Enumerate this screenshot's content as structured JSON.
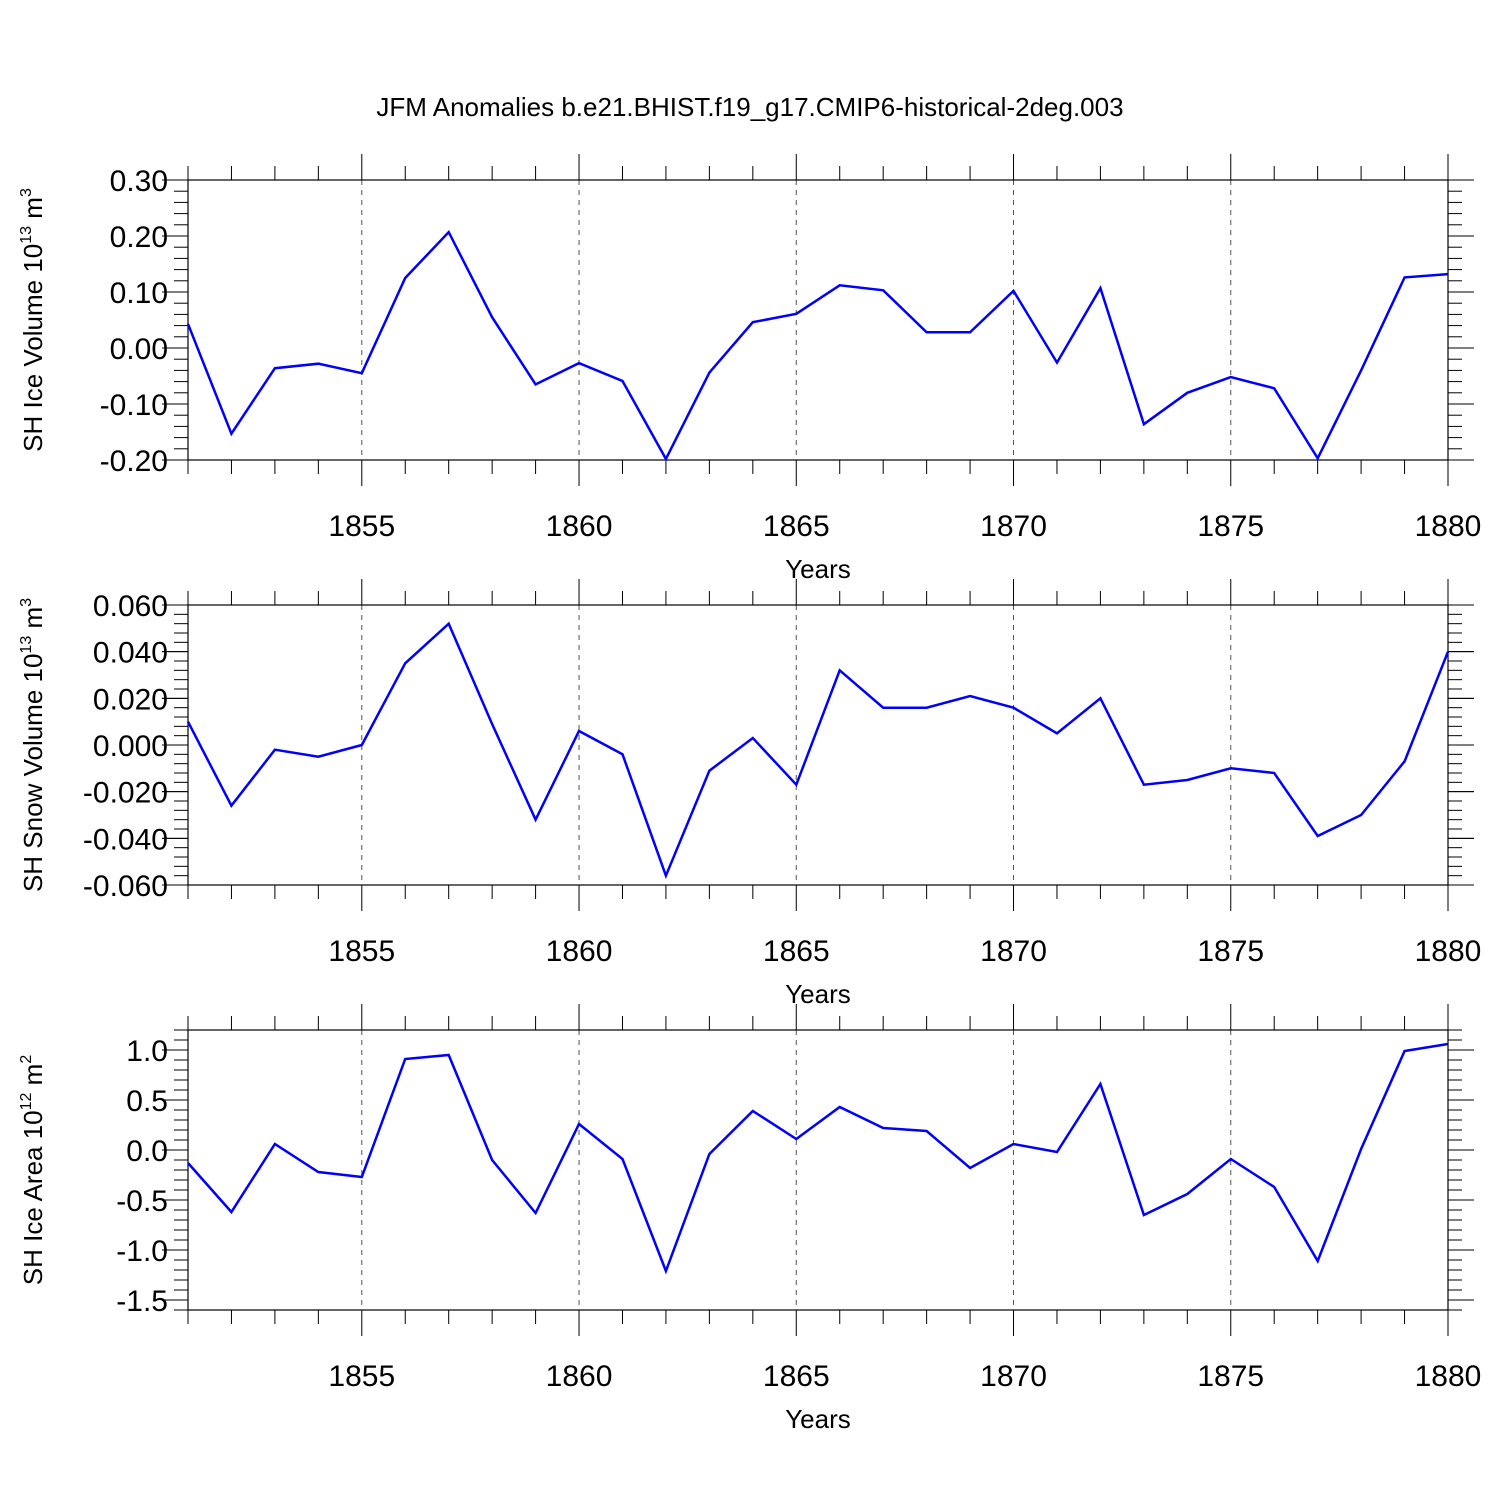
{
  "title": "JFM Anomalies b.e21.BHIST.f19_g17.CMIP6-historical-2deg.003",
  "chart_data": [
    {
      "type": "line",
      "ylabel_text": "SH Ice Volume 10",
      "ylabel_exp": "13",
      "ylabel_unit": " m",
      "ylabel_unit_exp": "3",
      "xlabel": "Years",
      "xlim": [
        1851,
        1880
      ],
      "ylim": [
        -0.2,
        0.3
      ],
      "x_ticks": [
        1855,
        1860,
        1865,
        1870,
        1875,
        1880
      ],
      "x_tick_labels": [
        "1855",
        "1860",
        "1865",
        "1870",
        "1875",
        "1880"
      ],
      "y_ticks": [
        -0.2,
        -0.1,
        0.0,
        0.1,
        0.2,
        0.3
      ],
      "y_tick_labels": [
        "-0.20",
        "-0.10",
        "0.00",
        "0.10",
        "0.20",
        "0.30"
      ],
      "grid": "vertical dashed at major x ticks",
      "line_color": "#0000ff",
      "x": [
        1851,
        1852,
        1853,
        1854,
        1855,
        1856,
        1857,
        1858,
        1859,
        1860,
        1861,
        1862,
        1863,
        1864,
        1865,
        1866,
        1867,
        1868,
        1869,
        1870,
        1871,
        1872,
        1873,
        1874,
        1875,
        1876,
        1877,
        1878,
        1879,
        1880
      ],
      "values": [
        0.043,
        -0.153,
        -0.036,
        -0.028,
        -0.045,
        0.125,
        0.207,
        0.055,
        -0.065,
        -0.027,
        -0.059,
        -0.198,
        -0.044,
        0.046,
        0.061,
        0.112,
        0.103,
        0.028,
        0.028,
        0.102,
        -0.026,
        0.107,
        -0.136,
        -0.08,
        -0.052,
        -0.072,
        -0.197,
        -0.04,
        0.126,
        0.132
      ]
    },
    {
      "type": "line",
      "ylabel_text": "SH Snow Volume 10",
      "ylabel_exp": "13",
      "ylabel_unit": " m",
      "ylabel_unit_exp": "3",
      "xlabel": "Years",
      "xlim": [
        1851,
        1880
      ],
      "ylim": [
        -0.06,
        0.06
      ],
      "x_ticks": [
        1855,
        1860,
        1865,
        1870,
        1875,
        1880
      ],
      "x_tick_labels": [
        "1855",
        "1860",
        "1865",
        "1870",
        "1875",
        "1880"
      ],
      "y_ticks": [
        -0.06,
        -0.04,
        -0.02,
        0.0,
        0.02,
        0.04,
        0.06
      ],
      "y_tick_labels": [
        "-0.060",
        "-0.040",
        "-0.020",
        "0.000",
        "0.020",
        "0.040",
        "0.060"
      ],
      "grid": "vertical dashed at major x ticks",
      "line_color": "#0000ff",
      "x": [
        1851,
        1852,
        1853,
        1854,
        1855,
        1856,
        1857,
        1858,
        1859,
        1860,
        1861,
        1862,
        1863,
        1864,
        1865,
        1866,
        1867,
        1868,
        1869,
        1870,
        1871,
        1872,
        1873,
        1874,
        1875,
        1876,
        1877,
        1878,
        1879,
        1880
      ],
      "values": [
        0.01,
        -0.026,
        -0.002,
        -0.005,
        0.0,
        0.035,
        0.052,
        0.009,
        -0.032,
        0.006,
        -0.004,
        -0.056,
        -0.011,
        0.003,
        -0.017,
        0.032,
        0.016,
        0.016,
        0.021,
        0.016,
        0.005,
        0.02,
        -0.017,
        -0.015,
        -0.01,
        -0.012,
        -0.039,
        -0.03,
        -0.007,
        0.04
      ]
    },
    {
      "type": "line",
      "ylabel_text": "SH Ice Area 10",
      "ylabel_exp": "12",
      "ylabel_unit": " m",
      "ylabel_unit_exp": "2",
      "xlabel": "Years",
      "xlim": [
        1851,
        1880
      ],
      "ylim": [
        -1.6,
        1.2
      ],
      "x_ticks": [
        1855,
        1860,
        1865,
        1870,
        1875,
        1880
      ],
      "x_tick_labels": [
        "1855",
        "1860",
        "1865",
        "1870",
        "1875",
        "1880"
      ],
      "y_ticks": [
        -1.5,
        -1.0,
        -0.5,
        0.0,
        0.5,
        1.0
      ],
      "y_tick_labels": [
        "-1.5",
        "-1.0",
        "-0.5",
        "0.0",
        "0.5",
        "1.0"
      ],
      "grid": "vertical dashed at major x ticks",
      "line_color": "#0000ff",
      "x": [
        1851,
        1852,
        1853,
        1854,
        1855,
        1856,
        1857,
        1858,
        1859,
        1860,
        1861,
        1862,
        1863,
        1864,
        1865,
        1866,
        1867,
        1868,
        1869,
        1870,
        1871,
        1872,
        1873,
        1874,
        1875,
        1876,
        1877,
        1878,
        1879,
        1880
      ],
      "values": [
        -0.13,
        -0.62,
        0.06,
        -0.22,
        -0.27,
        0.91,
        0.95,
        -0.1,
        -0.63,
        0.26,
        -0.09,
        -1.21,
        -0.04,
        0.39,
        0.11,
        0.43,
        0.22,
        0.19,
        -0.18,
        0.06,
        -0.02,
        0.66,
        -0.65,
        -0.44,
        -0.09,
        -0.37,
        -1.11,
        0.01,
        0.99,
        1.06
      ]
    }
  ]
}
